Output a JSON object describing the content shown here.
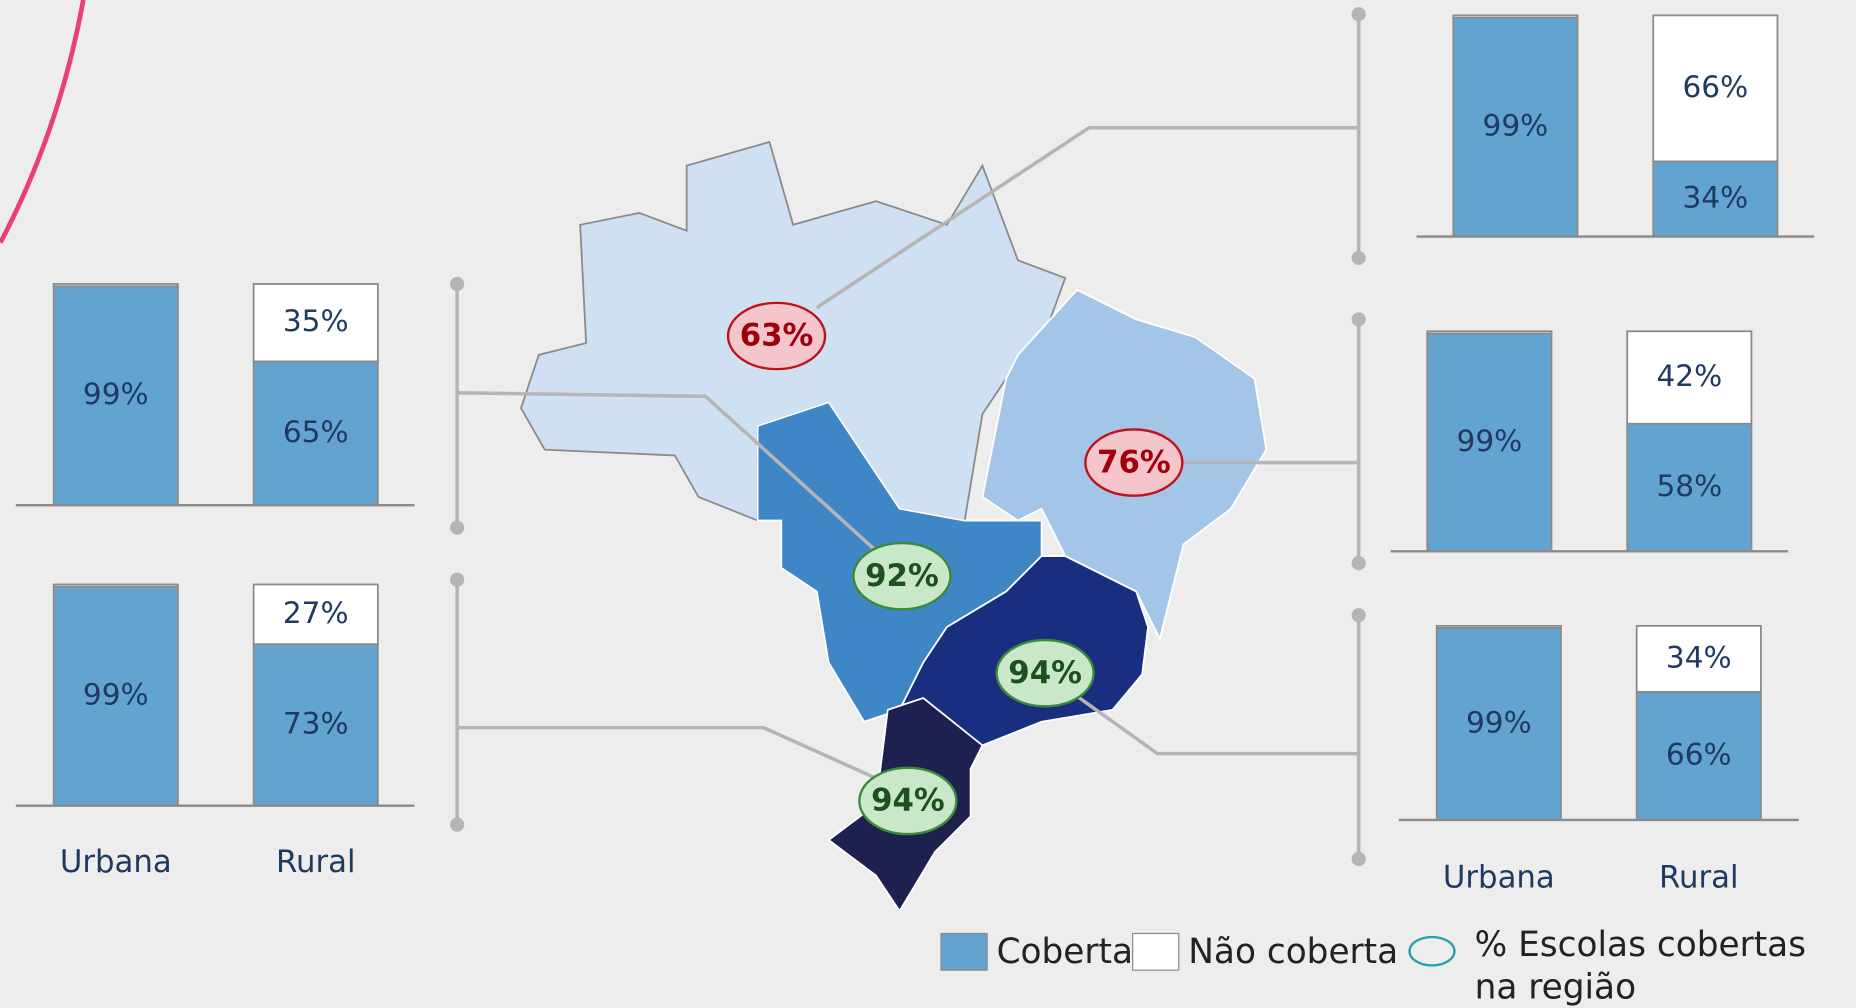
{
  "chart_data": [
    {
      "type": "bar",
      "stacked": true,
      "ylim": [
        0,
        100
      ],
      "series": [
        {
          "name": "Coberta",
          "color": "#62a3cf",
          "values": [
            99,
            65
          ],
          "value_labels": [
            "99%",
            "65%"
          ]
        },
        {
          "name": "Não coberta",
          "color": "#ffffff",
          "values": [
            1,
            35
          ],
          "value_labels": [
            null,
            "35%"
          ]
        }
      ]
    },
    {
      "type": "bar",
      "stacked": true,
      "ylim": [
        0,
        100
      ],
      "categories": [
        "Urbana",
        "Rural"
      ],
      "series": [
        {
          "name": "Coberta",
          "color": "#62a3cf",
          "values": [
            99,
            73
          ],
          "value_labels": [
            "99%",
            "73%"
          ]
        },
        {
          "name": "Não coberta",
          "color": "#ffffff",
          "values": [
            1,
            27
          ],
          "value_labels": [
            null,
            "27%"
          ]
        }
      ]
    },
    {
      "type": "bar",
      "stacked": true,
      "ylim": [
        0,
        100
      ],
      "series": [
        {
          "name": "Coberta",
          "color": "#62a3cf",
          "values": [
            99,
            34
          ],
          "value_labels": [
            "99%",
            "34%"
          ]
        },
        {
          "name": "Não coberta",
          "color": "#ffffff",
          "values": [
            1,
            66
          ],
          "value_labels": [
            null,
            "66%"
          ]
        }
      ]
    },
    {
      "type": "bar",
      "stacked": true,
      "ylim": [
        0,
        100
      ],
      "series": [
        {
          "name": "Coberta",
          "color": "#62a3cf",
          "values": [
            99,
            58
          ],
          "value_labels": [
            "99%",
            "58%"
          ]
        },
        {
          "name": "Não coberta",
          "color": "#ffffff",
          "values": [
            1,
            42
          ],
          "value_labels": [
            null,
            "42%"
          ]
        }
      ]
    },
    {
      "type": "bar",
      "stacked": true,
      "ylim": [
        0,
        100
      ],
      "categories": [
        "Urbana",
        "Rural"
      ],
      "series": [
        {
          "name": "Coberta",
          "color": "#62a3cf",
          "values": [
            99,
            66
          ],
          "value_labels": [
            "99%",
            "66%"
          ]
        },
        {
          "name": "Não coberta",
          "color": "#ffffff",
          "values": [
            1,
            34
          ],
          "value_labels": [
            null,
            "34%"
          ]
        }
      ]
    },
    {
      "type": "map",
      "values": [
        63,
        76,
        92,
        94,
        94
      ],
      "value_labels": [
        "63%",
        "76%",
        "92%",
        "94%",
        "94%"
      ],
      "colors": [
        "#f4c6cc",
        "#f4c6cc",
        "#c9e8c9",
        "#c9e8c9",
        "#c9e8c9"
      ],
      "bubble_legend": "% Escolas cobertas na região"
    }
  ]
}
